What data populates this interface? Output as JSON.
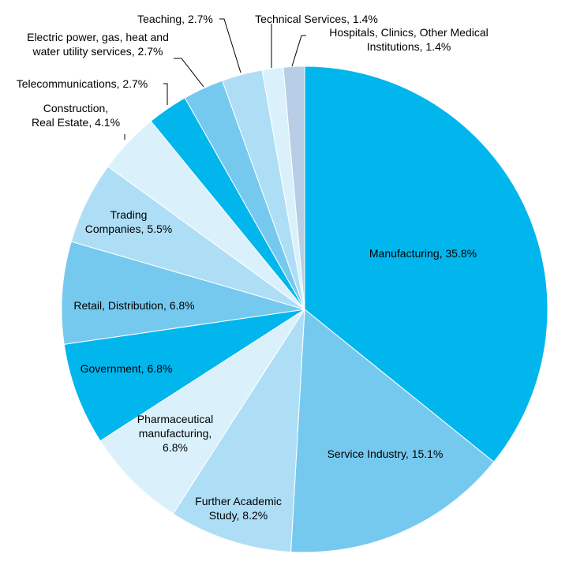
{
  "chart_data": {
    "type": "pie",
    "title": "",
    "start_angle_deg": 0,
    "direction": "clockwise",
    "slices": [
      {
        "name": "Manufacturing",
        "value": 35.8,
        "label": [
          "Manufacturing,  35.8%"
        ],
        "color": "#00b6ed"
      },
      {
        "name": "Service Industry",
        "value": 15.1,
        "label": [
          "Service Industry,  15.1%"
        ],
        "color": "#76c9ee"
      },
      {
        "name": "Further Academic Study",
        "value": 8.2,
        "label": [
          "Further Academic",
          "Study, 8.2%"
        ],
        "color": "#aedef6"
      },
      {
        "name": "Pharmaceutical manufacturing",
        "value": 6.8,
        "label": [
          "Pharmaceutical",
          "manufacturing,",
          "6.8%"
        ],
        "color": "#daf1fb"
      },
      {
        "name": "Government",
        "value": 6.8,
        "label": [
          "Government,  6.8%"
        ],
        "color": "#00b6ed"
      },
      {
        "name": "Retail, Distribution",
        "value": 6.8,
        "label": [
          "Retail,  Distribution, 6.8%"
        ],
        "color": "#76c9ee"
      },
      {
        "name": "Trading Companies",
        "value": 5.5,
        "label": [
          "Trading",
          "Companies, 5.5%"
        ],
        "color": "#aedef6"
      },
      {
        "name": "Construction, Real Estate",
        "value": 4.1,
        "label": [
          "Construction,",
          "Real Estate, 4.1%"
        ],
        "color": "#daf1fb"
      },
      {
        "name": "Telecommunications",
        "value": 2.7,
        "label": [
          "Telecommunications, 2.7%"
        ],
        "color": "#00b6ed"
      },
      {
        "name": "Electric power, gas, heat and water utility services",
        "value": 2.7,
        "label": [
          "Electric power, gas, heat and",
          "water utility services, 2.7%"
        ],
        "color": "#76c9ee"
      },
      {
        "name": "Teaching",
        "value": 2.7,
        "label": [
          "Teaching, 2.7%"
        ],
        "color": "#aedef6"
      },
      {
        "name": "Technical Services",
        "value": 1.4,
        "label": [
          "Technical Services, 1.4%"
        ],
        "color": "#daf1fb"
      },
      {
        "name": "Hospitals, Clinics, Other Medical Institutions",
        "value": 1.4,
        "label": [
          "Hospitals, Clinics, Other Medical",
          "Institutions,  1.4%"
        ],
        "color": "#b8cde6"
      }
    ]
  }
}
